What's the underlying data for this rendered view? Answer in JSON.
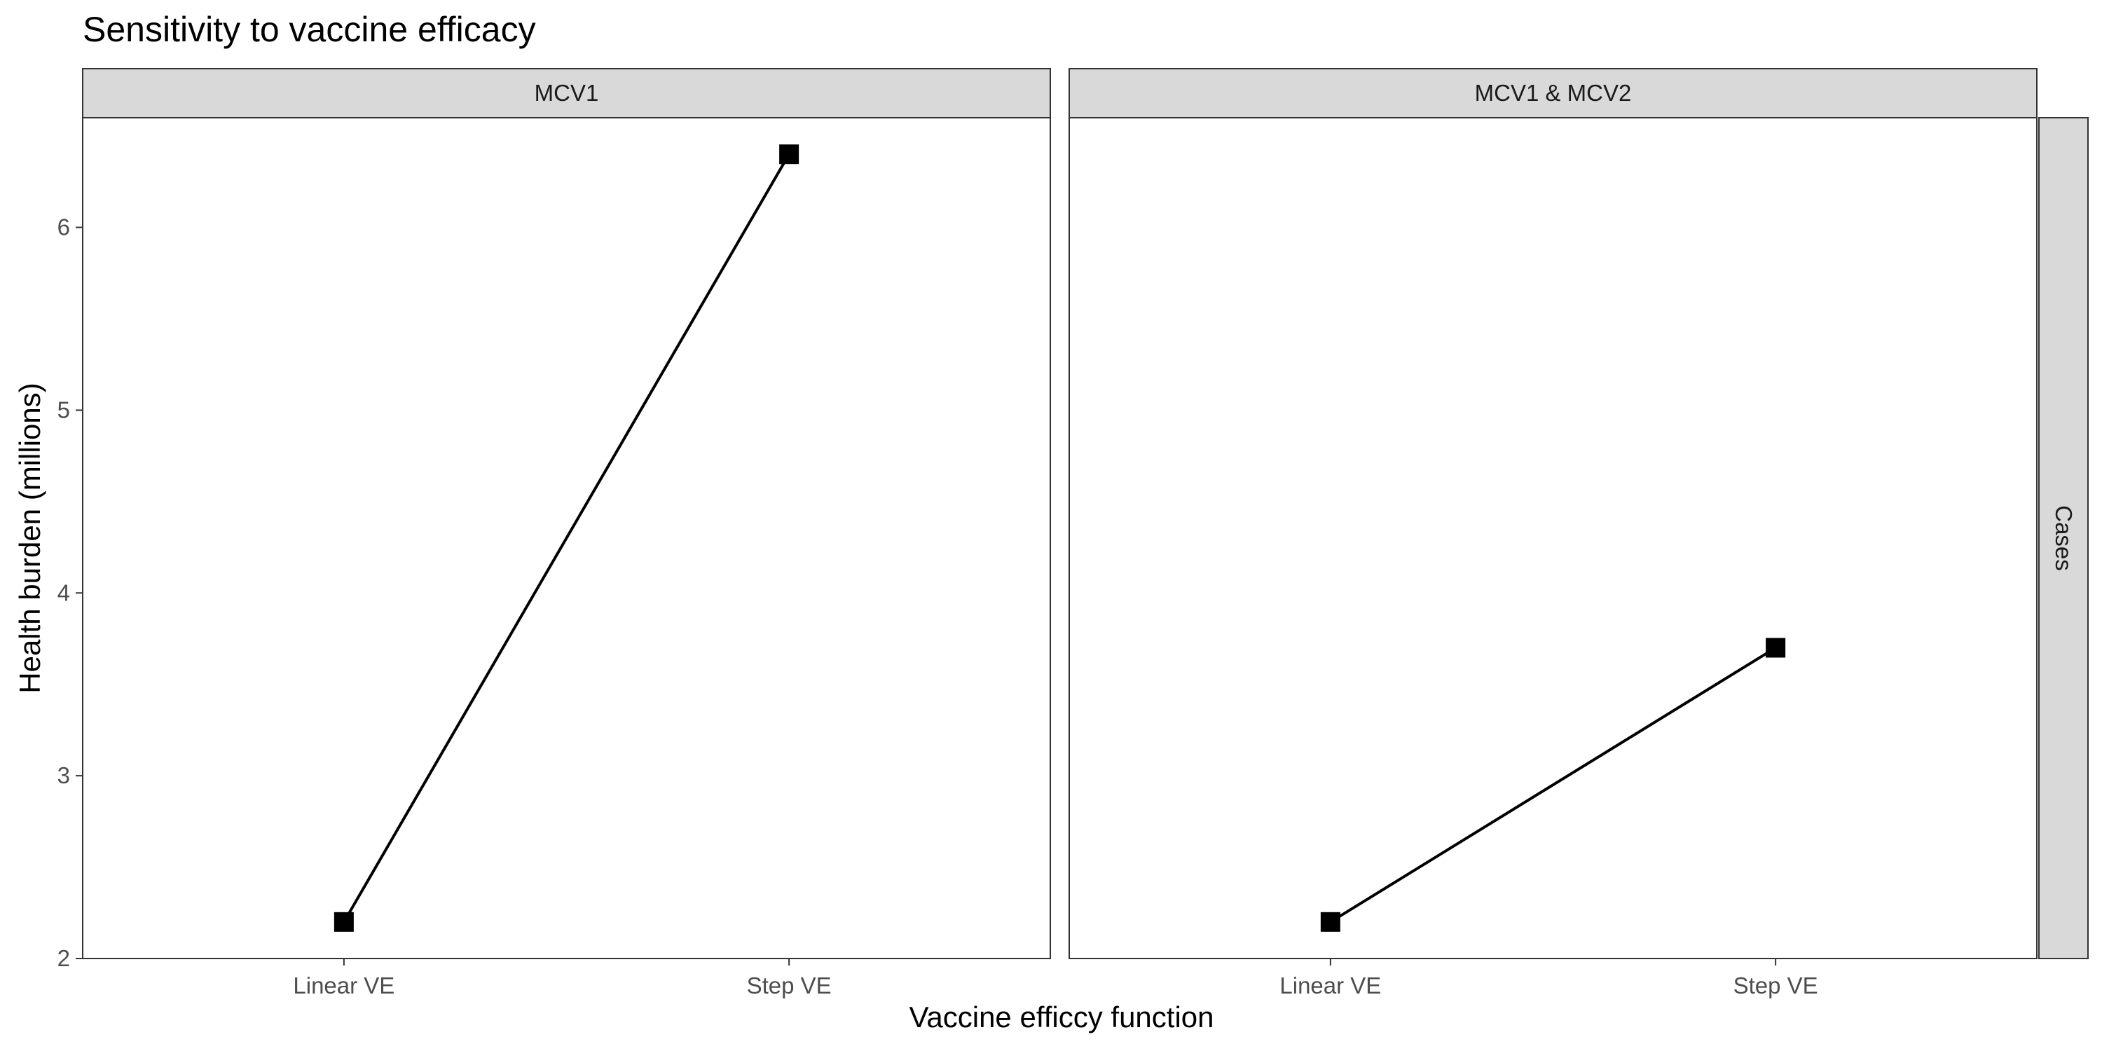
{
  "chart_data": {
    "type": "line",
    "title": "Sensitivity to vaccine efficacy",
    "xlabel": "Vaccine efficcy function",
    "ylabel": "Health burden (millions)",
    "categories": [
      "Linear VE",
      "Step VE"
    ],
    "ylim": [
      2,
      6.6
    ],
    "yticks": [
      2,
      3,
      4,
      5,
      6
    ],
    "row_facet": "Cases",
    "grid": false,
    "marker": "square",
    "line_color": "#000000",
    "panels": [
      {
        "facet": "MCV1",
        "values": [
          2.2,
          6.4
        ]
      },
      {
        "facet": "MCV1 & MCV2",
        "values": [
          2.2,
          3.7
        ]
      }
    ]
  }
}
